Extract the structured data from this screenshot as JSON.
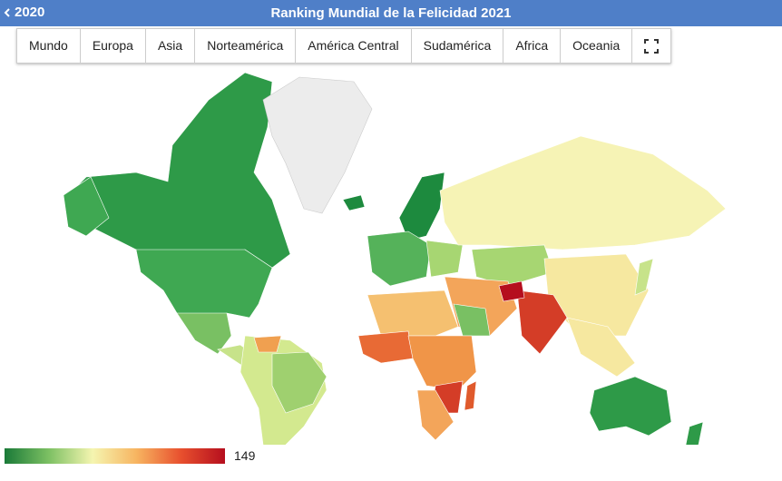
{
  "header": {
    "back": "2020",
    "title": "Ranking Mundial de la Felicidad 2021"
  },
  "tabs": [
    "Mundo",
    "Europa",
    "Asia",
    "Norteamérica",
    "América Central",
    "Sudamérica",
    "Africa",
    "Oceania"
  ],
  "legend": {
    "max": 149
  }
}
